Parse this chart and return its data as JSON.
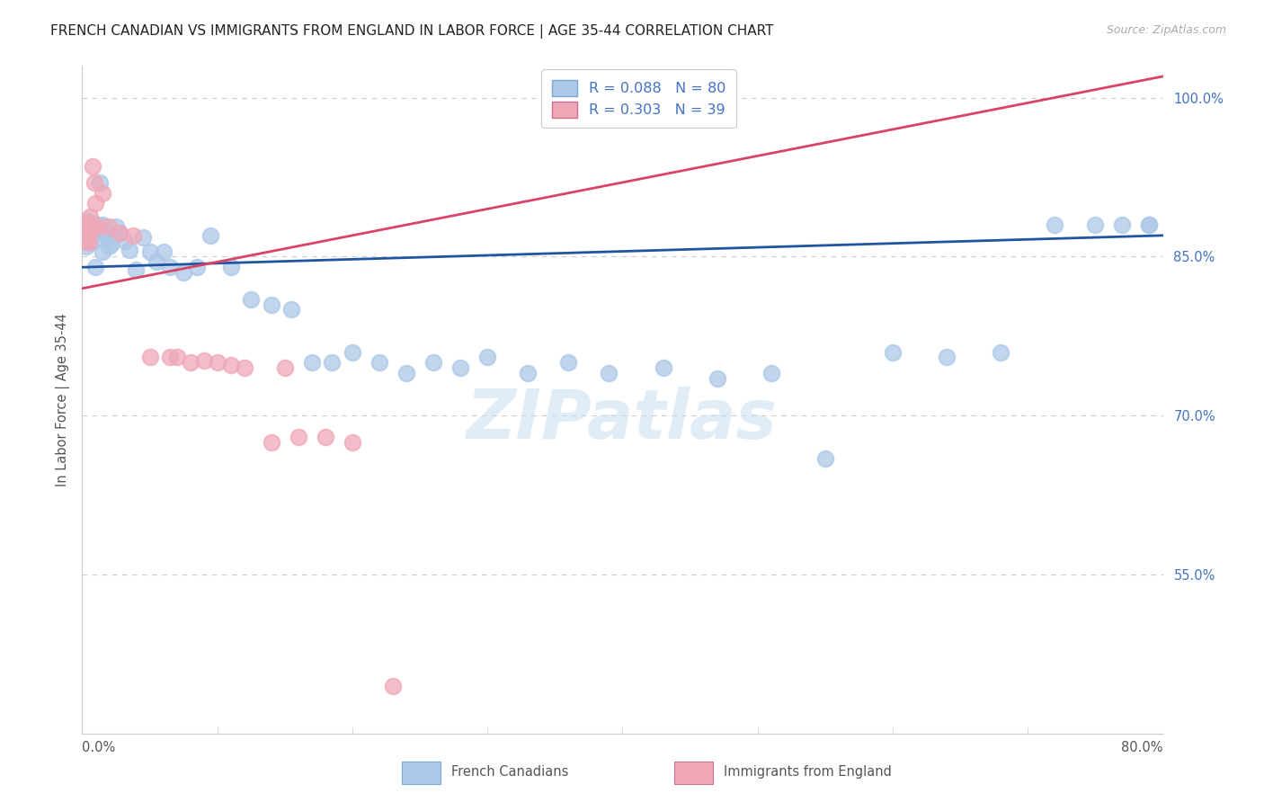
{
  "title": "FRENCH CANADIAN VS IMMIGRANTS FROM ENGLAND IN LABOR FORCE | AGE 35-44 CORRELATION CHART",
  "source": "Source: ZipAtlas.com",
  "ylabel": "In Labor Force | Age 35-44",
  "series_blue_name": "French Canadians",
  "series_pink_name": "Immigrants from England",
  "blue_R": 0.088,
  "blue_N": 80,
  "pink_R": 0.303,
  "pink_N": 39,
  "blue_dot_color": "#adc8e8",
  "blue_line_color": "#2255a0",
  "pink_dot_color": "#f0a8b8",
  "pink_line_color": "#d94466",
  "grid_color": "#cccccc",
  "background_color": "#ffffff",
  "right_tick_color": "#4472c4",
  "watermark": "ZIPatlas",
  "xlim": [
    0.0,
    0.8
  ],
  "ylim": [
    0.4,
    1.03
  ],
  "right_yticks": [
    1.0,
    0.85,
    0.7,
    0.55
  ],
  "right_yticklabels": [
    "100.0%",
    "85.0%",
    "70.0%",
    "55.0%"
  ],
  "blue_line_x0": 0.0,
  "blue_line_y0": 0.84,
  "blue_line_x1": 0.8,
  "blue_line_y1": 0.87,
  "pink_line_x0": 0.0,
  "pink_line_y0": 0.82,
  "pink_line_x1": 0.8,
  "pink_line_y1": 1.02,
  "blue_x": [
    0.001,
    0.001,
    0.001,
    0.002,
    0.002,
    0.002,
    0.002,
    0.003,
    0.003,
    0.003,
    0.003,
    0.003,
    0.004,
    0.004,
    0.004,
    0.004,
    0.005,
    0.005,
    0.005,
    0.006,
    0.006,
    0.006,
    0.007,
    0.007,
    0.008,
    0.008,
    0.009,
    0.009,
    0.01,
    0.01,
    0.012,
    0.013,
    0.015,
    0.016,
    0.018,
    0.02,
    0.022,
    0.025,
    0.028,
    0.032,
    0.035,
    0.04,
    0.045,
    0.05,
    0.055,
    0.06,
    0.065,
    0.075,
    0.085,
    0.095,
    0.11,
    0.125,
    0.14,
    0.155,
    0.17,
    0.185,
    0.2,
    0.22,
    0.24,
    0.26,
    0.28,
    0.3,
    0.33,
    0.36,
    0.39,
    0.43,
    0.47,
    0.51,
    0.55,
    0.6,
    0.64,
    0.68,
    0.72,
    0.75,
    0.77,
    0.79,
    0.79,
    0.01,
    0.015,
    0.02
  ],
  "blue_y": [
    0.88,
    0.876,
    0.87,
    0.882,
    0.878,
    0.872,
    0.868,
    0.884,
    0.876,
    0.87,
    0.866,
    0.86,
    0.882,
    0.876,
    0.87,
    0.864,
    0.878,
    0.872,
    0.865,
    0.876,
    0.87,
    0.863,
    0.878,
    0.87,
    0.882,
    0.874,
    0.876,
    0.866,
    0.878,
    0.872,
    0.88,
    0.92,
    0.88,
    0.876,
    0.872,
    0.868,
    0.862,
    0.878,
    0.872,
    0.865,
    0.856,
    0.838,
    0.868,
    0.855,
    0.845,
    0.855,
    0.84,
    0.835,
    0.84,
    0.87,
    0.84,
    0.81,
    0.805,
    0.8,
    0.75,
    0.75,
    0.76,
    0.75,
    0.74,
    0.75,
    0.745,
    0.755,
    0.74,
    0.75,
    0.74,
    0.745,
    0.735,
    0.74,
    0.66,
    0.76,
    0.755,
    0.76,
    0.88,
    0.88,
    0.88,
    0.88,
    0.88,
    0.84,
    0.855,
    0.86
  ],
  "pink_x": [
    0.001,
    0.001,
    0.001,
    0.002,
    0.002,
    0.002,
    0.003,
    0.003,
    0.003,
    0.004,
    0.004,
    0.005,
    0.005,
    0.005,
    0.006,
    0.006,
    0.007,
    0.008,
    0.009,
    0.01,
    0.012,
    0.015,
    0.02,
    0.028,
    0.038,
    0.05,
    0.065,
    0.08,
    0.1,
    0.12,
    0.15,
    0.18,
    0.2,
    0.23,
    0.14,
    0.16,
    0.07,
    0.09,
    0.11
  ],
  "pink_y": [
    0.88,
    0.876,
    0.868,
    0.882,
    0.876,
    0.868,
    0.878,
    0.872,
    0.864,
    0.882,
    0.874,
    0.88,
    0.872,
    0.864,
    0.888,
    0.876,
    0.878,
    0.935,
    0.92,
    0.9,
    0.878,
    0.91,
    0.878,
    0.872,
    0.87,
    0.755,
    0.755,
    0.75,
    0.75,
    0.745,
    0.745,
    0.68,
    0.675,
    0.445,
    0.675,
    0.68,
    0.755,
    0.752,
    0.748
  ]
}
